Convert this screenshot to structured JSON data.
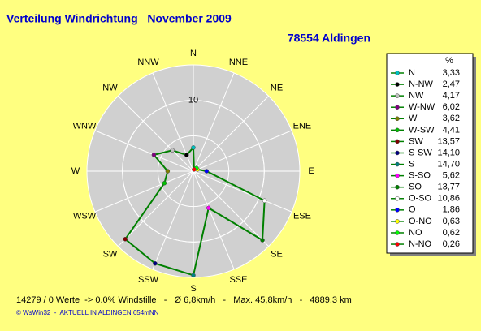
{
  "chart_data": {
    "type": "radar",
    "title": "Verteilung Windrichtung   November 2009",
    "subtitle": "78554 Aldingen",
    "categories": [
      "N",
      "NNE",
      "NE",
      "ENE",
      "E",
      "ESE",
      "SE",
      "SSE",
      "S",
      "SSW",
      "SW",
      "WSW",
      "W",
      "WNW",
      "NW",
      "NNW"
    ],
    "rlim": [
      0,
      15
    ],
    "rticks": [
      10
    ],
    "legend_title": "%",
    "series": [
      {
        "color": "#008000",
        "labels": [
          "N",
          "N-NW",
          "NW",
          "W-NW",
          "W",
          "W-SW",
          "SW",
          "S-SW",
          "S",
          "S-SO",
          "SO",
          "O-SO",
          "O",
          "O-NO",
          "NO",
          "N-NO"
        ],
        "colors": [
          "#00c0c0",
          "#000000",
          "#c0c0c0",
          "#800080",
          "#808000",
          "#00c000",
          "#800000",
          "#000080",
          "#008080",
          "#ff00ff",
          "#008000",
          "#ffffff",
          "#0000ff",
          "#ffff00",
          "#00ff00",
          "#ff0000"
        ],
        "values": [
          3.33,
          2.47,
          4.17,
          6.02,
          3.62,
          4.41,
          13.57,
          14.1,
          14.7,
          5.62,
          13.77,
          10.86,
          1.86,
          0.63,
          0.62,
          0.26
        ],
        "value_labels": [
          "3,33",
          "2,47",
          "4,17",
          "6,02",
          "3,62",
          "4,41",
          "13,57",
          "14,10",
          "14,70",
          "5,62",
          "13,77",
          "10,86",
          "1,86",
          "0,63",
          "0,62",
          "0,26"
        ]
      }
    ],
    "footer_stats": "14279 / 0 Werte  -> 0.0% Windstille   -   Ø 6,8km/h   -   Max. 45,8km/h   -   4889.3 km",
    "footer_credit": "© WsWin32  -  AKTUELL IN ALDINGEN 654mNN"
  }
}
